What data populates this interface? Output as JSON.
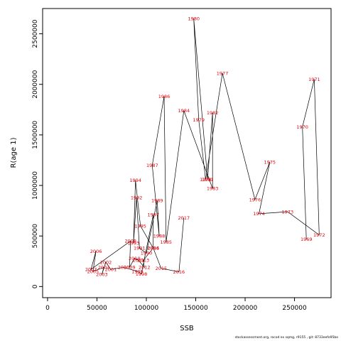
{
  "chart_data": {
    "type": "line",
    "xlabel": "SSB",
    "ylabel": "R(age 1)",
    "xlim": [
      -5000,
      287000
    ],
    "ylim": [
      -110000,
      2750000
    ],
    "xticks": [
      0,
      50000,
      100000,
      150000,
      200000,
      250000
    ],
    "yticks": [
      0,
      500000,
      1000000,
      1500000,
      2000000,
      2500000
    ],
    "grid": false,
    "line_color": "#000000",
    "label_color": "#e8000b",
    "points": [
      {
        "year": "1969",
        "x": 262000,
        "y": 470000
      },
      {
        "year": "1970",
        "x": 258000,
        "y": 1580000
      },
      {
        "year": "1971",
        "x": 270000,
        "y": 2050000
      },
      {
        "year": "1972",
        "x": 275000,
        "y": 510000
      },
      {
        "year": "1973",
        "x": 243000,
        "y": 740000
      },
      {
        "year": "1974",
        "x": 214000,
        "y": 720000
      },
      {
        "year": "1975",
        "x": 225000,
        "y": 1230000
      },
      {
        "year": "1976",
        "x": 210000,
        "y": 860000
      },
      {
        "year": "1977",
        "x": 177000,
        "y": 2110000
      },
      {
        "year": "1978",
        "x": 160000,
        "y": 1060000
      },
      {
        "year": "1979",
        "x": 153000,
        "y": 1650000
      },
      {
        "year": "1980",
        "x": 148000,
        "y": 2650000
      },
      {
        "year": "1981",
        "x": 162000,
        "y": 1060000
      },
      {
        "year": "1982",
        "x": 167000,
        "y": 1720000
      },
      {
        "year": "1983",
        "x": 167000,
        "y": 970000
      },
      {
        "year": "1984",
        "x": 138000,
        "y": 1740000
      },
      {
        "year": "1985",
        "x": 120000,
        "y": 440000
      },
      {
        "year": "1986",
        "x": 118000,
        "y": 1880000
      },
      {
        "year": "1987",
        "x": 106000,
        "y": 1200000
      },
      {
        "year": "1988",
        "x": 113000,
        "y": 500000
      },
      {
        "year": "1989",
        "x": 111000,
        "y": 850000
      },
      {
        "year": "1990",
        "x": 100000,
        "y": 330000
      },
      {
        "year": "1991",
        "x": 93000,
        "y": 380000
      },
      {
        "year": "1992",
        "x": 90000,
        "y": 880000
      },
      {
        "year": "1993",
        "x": 87000,
        "y": 430000
      },
      {
        "year": "1994",
        "x": 89000,
        "y": 1050000
      },
      {
        "year": "1995",
        "x": 94000,
        "y": 600000
      },
      {
        "year": "1996",
        "x": 107000,
        "y": 380000
      },
      {
        "year": "1997",
        "x": 107000,
        "y": 710000
      },
      {
        "year": "1998",
        "x": 95000,
        "y": 125000
      },
      {
        "year": "1999",
        "x": 91000,
        "y": 150000
      },
      {
        "year": "2000",
        "x": 77000,
        "y": 190000
      },
      {
        "year": "2001",
        "x": 64000,
        "y": 170000
      },
      {
        "year": "2002",
        "x": 59000,
        "y": 240000
      },
      {
        "year": "2003",
        "x": 55000,
        "y": 120000
      },
      {
        "year": "2004",
        "x": 57000,
        "y": 190000
      },
      {
        "year": "2005",
        "x": 46000,
        "y": 150000
      },
      {
        "year": "2006",
        "x": 49000,
        "y": 350000
      },
      {
        "year": "2007",
        "x": 44000,
        "y": 170000
      },
      {
        "year": "2008",
        "x": 84000,
        "y": 450000
      },
      {
        "year": "2009",
        "x": 83000,
        "y": 190000
      },
      {
        "year": "2010",
        "x": 88000,
        "y": 280000
      },
      {
        "year": "2011",
        "x": 92000,
        "y": 260000
      },
      {
        "year": "2012",
        "x": 98000,
        "y": 190000
      },
      {
        "year": "2013",
        "x": 97000,
        "y": 260000
      },
      {
        "year": "2014",
        "x": 107000,
        "y": 380000
      },
      {
        "year": "2015",
        "x": 115000,
        "y": 180000
      },
      {
        "year": "2016",
        "x": 133000,
        "y": 145000
      },
      {
        "year": "2017",
        "x": 138000,
        "y": 680000
      }
    ]
  },
  "footer": "stockassessment.org,  rocod ex sqmg, r9155 ,  git: 8733eefe95be"
}
